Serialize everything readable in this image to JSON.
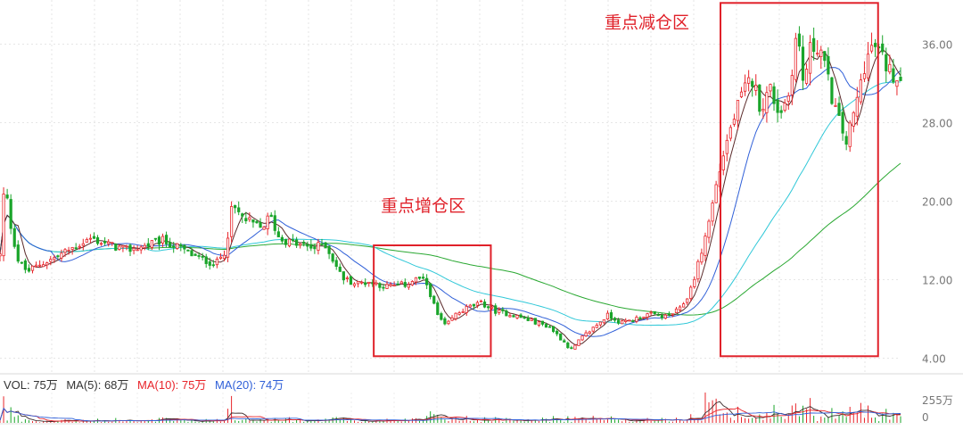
{
  "chart_data": {
    "type": "candlestick",
    "y_ticks": [
      "36.00",
      "28.00",
      "20.00",
      "12.00",
      "4.00"
    ],
    "ylim": [
      2.5,
      40.5
    ],
    "annotations": [
      {
        "label": "重点增仓区",
        "x_range": [
          0.415,
          0.545
        ],
        "y_range": [
          4.2,
          15.5
        ]
      },
      {
        "label": "重点减仓区",
        "x_range": [
          0.8,
          0.975
        ],
        "y_range": [
          4.2,
          40.2
        ]
      }
    ],
    "price_path": [
      [
        0.0,
        14.5
      ],
      [
        0.005,
        22.0
      ],
      [
        0.012,
        17.5
      ],
      [
        0.02,
        14.0
      ],
      [
        0.03,
        12.8
      ],
      [
        0.045,
        13.6
      ],
      [
        0.06,
        14.2
      ],
      [
        0.08,
        15.2
      ],
      [
        0.1,
        16.2
      ],
      [
        0.12,
        15.6
      ],
      [
        0.14,
        15.0
      ],
      [
        0.16,
        15.4
      ],
      [
        0.18,
        16.0
      ],
      [
        0.2,
        15.2
      ],
      [
        0.22,
        14.2
      ],
      [
        0.24,
        13.6
      ],
      [
        0.25,
        15.0
      ],
      [
        0.258,
        19.5
      ],
      [
        0.27,
        18.2
      ],
      [
        0.29,
        17.2
      ],
      [
        0.3,
        18.5
      ],
      [
        0.31,
        16.2
      ],
      [
        0.33,
        15.6
      ],
      [
        0.35,
        15.2
      ],
      [
        0.36,
        15.8
      ],
      [
        0.37,
        14.0
      ],
      [
        0.38,
        12.2
      ],
      [
        0.395,
        11.6
      ],
      [
        0.41,
        11.8
      ],
      [
        0.43,
        11.3
      ],
      [
        0.45,
        11.5
      ],
      [
        0.465,
        12.2
      ],
      [
        0.475,
        11.4
      ],
      [
        0.485,
        8.5
      ],
      [
        0.495,
        7.2
      ],
      [
        0.505,
        8.4
      ],
      [
        0.52,
        9.2
      ],
      [
        0.535,
        9.6
      ],
      [
        0.55,
        8.8
      ],
      [
        0.57,
        8.4
      ],
      [
        0.59,
        7.8
      ],
      [
        0.61,
        7.2
      ],
      [
        0.625,
        5.8
      ],
      [
        0.635,
        4.8
      ],
      [
        0.645,
        6.0
      ],
      [
        0.66,
        7.2
      ],
      [
        0.675,
        8.4
      ],
      [
        0.69,
        7.6
      ],
      [
        0.705,
        8.0
      ],
      [
        0.72,
        8.5
      ],
      [
        0.74,
        8.2
      ],
      [
        0.755,
        9.0
      ],
      [
        0.765,
        10.5
      ],
      [
        0.775,
        13.5
      ],
      [
        0.785,
        17.0
      ],
      [
        0.795,
        21.5
      ],
      [
        0.805,
        25.5
      ],
      [
        0.815,
        28.5
      ],
      [
        0.825,
        31.0
      ],
      [
        0.835,
        32.5
      ],
      [
        0.845,
        29.5
      ],
      [
        0.855,
        31.5
      ],
      [
        0.865,
        29.0
      ],
      [
        0.875,
        30.5
      ],
      [
        0.885,
        37.5
      ],
      [
        0.892,
        32.0
      ],
      [
        0.9,
        35.5
      ],
      [
        0.91,
        36.0
      ],
      [
        0.92,
        32.0
      ],
      [
        0.93,
        28.5
      ],
      [
        0.94,
        26.0
      ],
      [
        0.95,
        29.5
      ],
      [
        0.96,
        34.0
      ],
      [
        0.97,
        36.0
      ],
      [
        0.98,
        34.5
      ],
      [
        0.99,
        33.0
      ],
      [
        1.0,
        32.8
      ]
    ],
    "vol_axis": {
      "top": "255万",
      "bottom": "0"
    },
    "legend": {
      "vol": "VOL: 75万",
      "ma5": "MA(5): 68万",
      "ma10": "MA(10): 75万",
      "ma20": "MA(20): 74万"
    },
    "colors": {
      "up": "#e8242a",
      "down": "#1aa52a",
      "ma_short": "#5a2a2a",
      "ma_mid": "#3060d8",
      "ma_cyan": "#30c8d8",
      "ma_long": "#2aa832",
      "annotation": "#e0212a",
      "axis_text": "#777777"
    }
  }
}
